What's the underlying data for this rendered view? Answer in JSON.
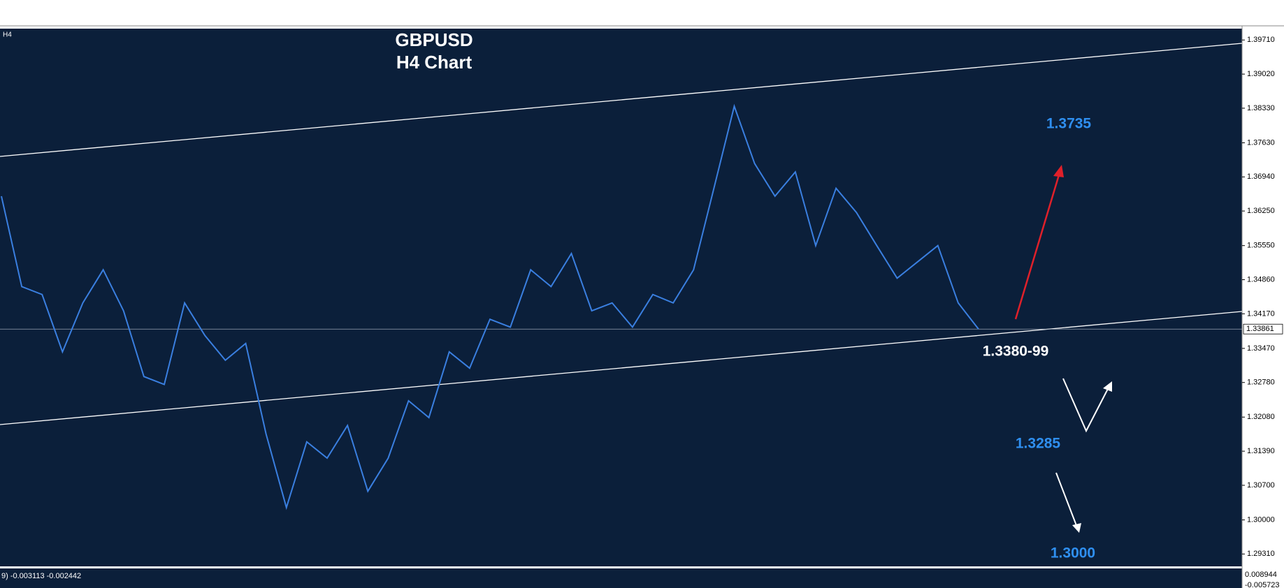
{
  "header": {
    "timeframe": "H4"
  },
  "chart_data": {
    "type": "line",
    "title": "GBPUSD",
    "subtitle": "H4  Chart",
    "values": [
      1.3655,
      1.3472,
      1.3456,
      1.334,
      1.3439,
      1.3506,
      1.3423,
      1.329,
      1.3274,
      1.3439,
      1.3373,
      1.3323,
      1.3357,
      1.3174,
      1.3025,
      1.3158,
      1.3125,
      1.3191,
      1.3058,
      1.3125,
      1.3241,
      1.3207,
      1.334,
      1.3307,
      1.3406,
      1.339,
      1.3506,
      1.3472,
      1.3539,
      1.3423,
      1.3439,
      1.339,
      1.3456,
      1.3439,
      1.3506,
      1.3671,
      1.3837,
      1.3721,
      1.3655,
      1.3704,
      1.3555,
      1.3671,
      1.3622,
      1.3555,
      1.3489,
      1.3522,
      1.3555,
      1.3439,
      1.3386
    ],
    "color": "#3a7fe0",
    "ylim": [
      1.2906,
      1.3994
    ],
    "yticks": [
      {
        "value": 1.3971,
        "label": "1.39710"
      },
      {
        "value": 1.3902,
        "label": "1.39020"
      },
      {
        "value": 1.3833,
        "label": "1.38330"
      },
      {
        "value": 1.3763,
        "label": "1.37630"
      },
      {
        "value": 1.3694,
        "label": "1.36940"
      },
      {
        "value": 1.3625,
        "label": "1.36250"
      },
      {
        "value": 1.3555,
        "label": "1.35550"
      },
      {
        "value": 1.3486,
        "label": "1.34860"
      },
      {
        "value": 1.3417,
        "label": "1.34170"
      },
      {
        "value": 1.3347,
        "label": "1.33470"
      },
      {
        "value": 1.3278,
        "label": "1.32780"
      },
      {
        "value": 1.3208,
        "label": "1.32080"
      },
      {
        "value": 1.3139,
        "label": "1.31390"
      },
      {
        "value": 1.307,
        "label": "1.30700"
      },
      {
        "value": 1.3,
        "label": "1.30000"
      },
      {
        "value": 1.2931,
        "label": "1.29310"
      }
    ],
    "current_price": {
      "value": 1.33861,
      "label": "1.33861"
    },
    "annotations": [
      "1.3735",
      "1.3380-99",
      "1.3285",
      "1.3000"
    ],
    "indicator": {
      "label": "9) -0.003113 -0.002442",
      "axis_labels": [
        "0.008944",
        "-0.005723"
      ]
    }
  }
}
